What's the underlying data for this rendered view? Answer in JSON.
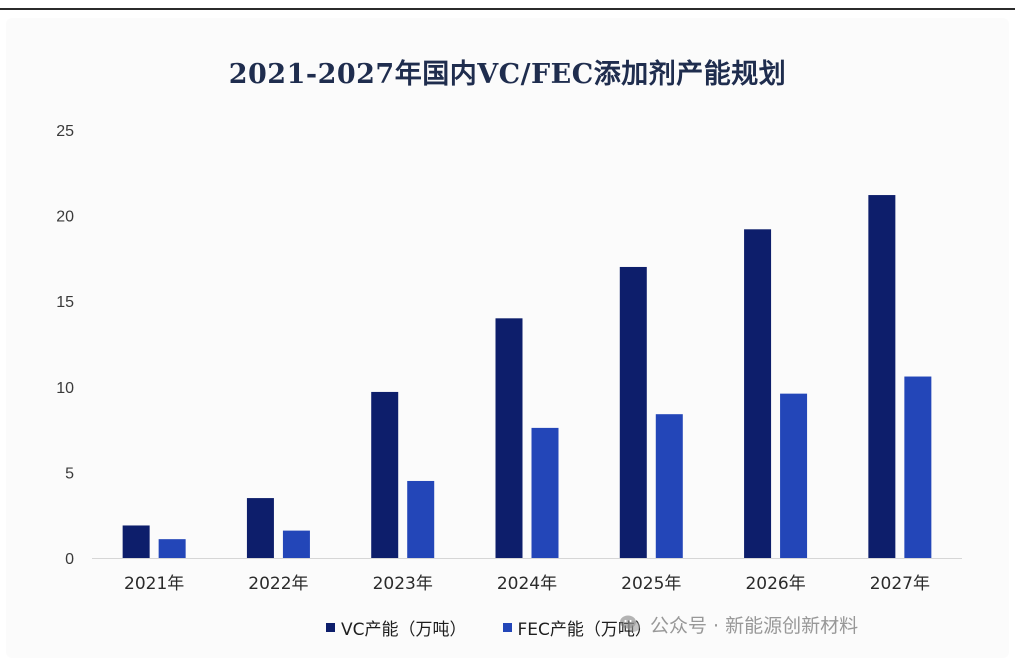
{
  "chart_data": {
    "type": "bar",
    "title": "2021-2027年国内VC/FEC添加剂产能规划",
    "categories": [
      "2021年",
      "2022年",
      "2023年",
      "2024年",
      "2025年",
      "2026年",
      "2027年"
    ],
    "series": [
      {
        "name": "VC产能（万吨）",
        "values": [
          1.9,
          3.5,
          9.7,
          14.0,
          17.0,
          19.2,
          21.2
        ]
      },
      {
        "name": "FEC产能（万吨）",
        "values": [
          1.1,
          1.6,
          4.5,
          7.6,
          8.4,
          9.6,
          10.6
        ]
      }
    ],
    "yticks": [
      "0",
      "5",
      "10",
      "15",
      "20",
      "25"
    ],
    "ylim": [
      0,
      25
    ],
    "grid": false,
    "legend_position": "bottom"
  },
  "colors": {
    "vc": "#0d1e6b",
    "fec": "#2346b8",
    "title": "#1f2d4e"
  },
  "watermark": {
    "icon": "wechat-icon",
    "text": "公众号 · 新能源创新材料"
  }
}
